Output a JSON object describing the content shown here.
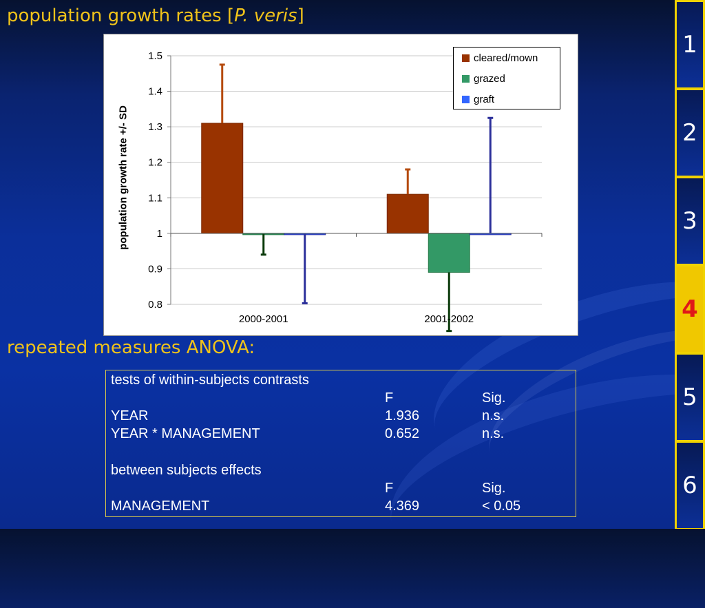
{
  "slide": {
    "title_prefix": "population growth rates [",
    "title_species": "P. veris",
    "title_suffix": "]",
    "section_title": "repeated measures ANOVA:"
  },
  "colors": {
    "title_text": "#f0c31a",
    "cleared_mown": "#993300",
    "grazed": "#339966",
    "graft": "#3366ff",
    "cleared_mown_error": "#b54a0d",
    "grazed_error": "#0a3a0a",
    "graft_error": "#2b2f9a"
  },
  "chart_data": {
    "type": "bar",
    "title": "",
    "xlabel": "",
    "ylabel": "population growth rate +/- SD",
    "categories": [
      "2000-2001",
      "2001-2002"
    ],
    "baseline": 1,
    "ylim": [
      0.8,
      1.5
    ],
    "yticks": [
      0.8,
      0.9,
      1,
      1.1,
      1.2,
      1.3,
      1.4,
      1.5
    ],
    "ytick_labels": [
      "0.8",
      "0.9",
      "1",
      "1.1",
      "1.2",
      "1.3",
      "1.4",
      "1.5"
    ],
    "grid": true,
    "legend_position": "top-right",
    "series": [
      {
        "name": "cleared/mown",
        "values": [
          1.31,
          1.11
        ],
        "sd": [
          0.165,
          0.07
        ]
      },
      {
        "name": "grazed",
        "values": [
          0.998,
          0.89
        ],
        "sd": [
          0.058,
          0.165
        ]
      },
      {
        "name": "graft",
        "values": [
          0.998,
          1.0
        ],
        "sd": [
          0.195,
          0.325
        ]
      }
    ]
  },
  "anova": {
    "within_title": "tests of within-subjects contrasts",
    "within_headers": [
      "F",
      "Sig."
    ],
    "within_rows": [
      {
        "effect": "YEAR",
        "F": "1.936",
        "sig": "n.s."
      },
      {
        "effect": "YEAR * MANAGEMENT",
        "F": "0.652",
        "sig": "n.s."
      }
    ],
    "between_title": "between subjects effects",
    "between_headers": [
      "F",
      "Sig."
    ],
    "between_rows": [
      {
        "effect": "MANAGEMENT",
        "F": "4.369",
        "sig": "< 0.05"
      }
    ]
  },
  "nav": {
    "items": [
      "1",
      "2",
      "3",
      "4",
      "5",
      "6"
    ],
    "active": "4"
  }
}
